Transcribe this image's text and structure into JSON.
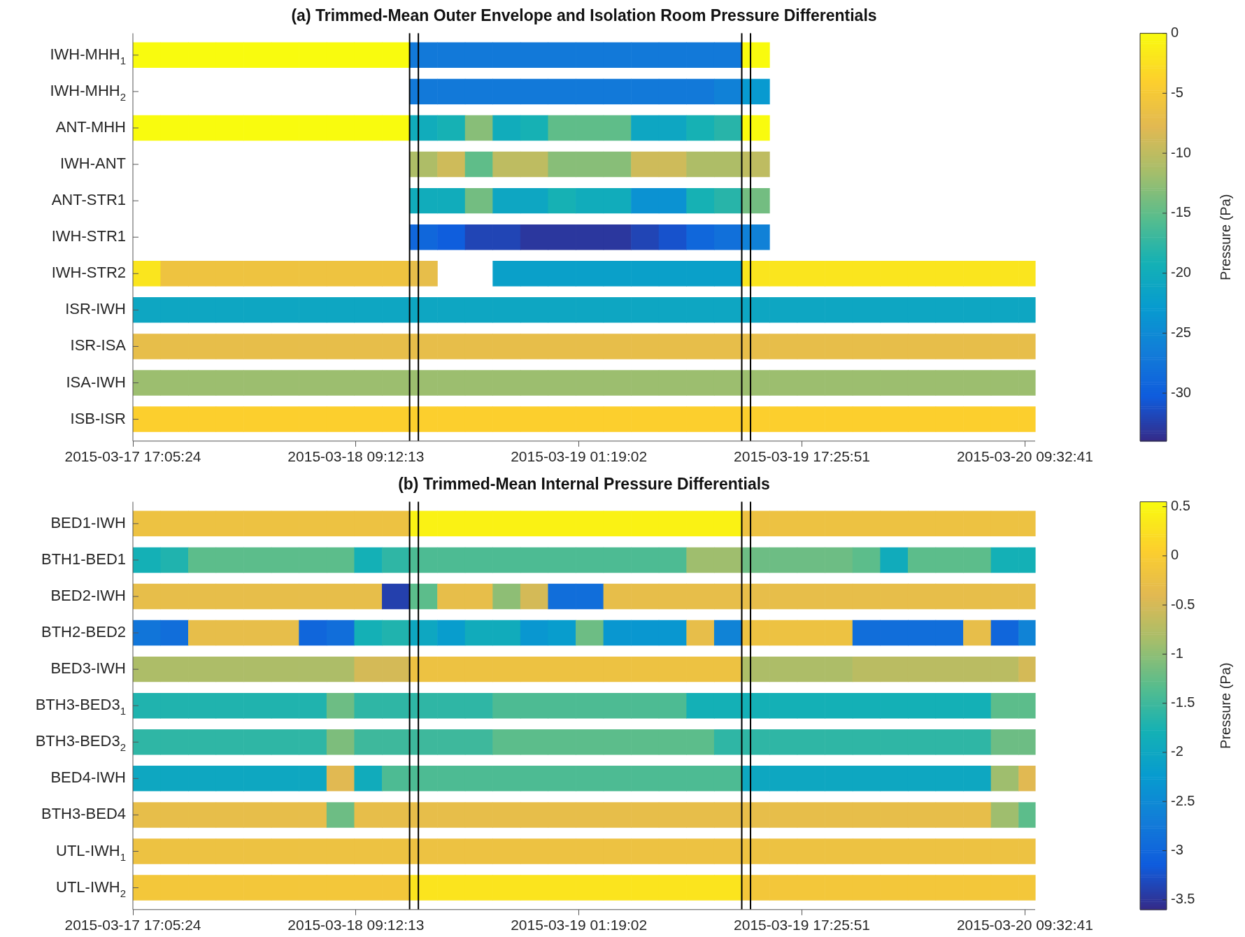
{
  "chart_data": [
    {
      "type": "heatmap",
      "title": "(a) Trimmed-Mean Outer Envelope and Isolation Room Pressure Differentials",
      "clabel": "Pressure (Pa)",
      "x": [
        "2015-03-17T18:05",
        "2015-03-17T20:05",
        "2015-03-17T22:05",
        "2015-03-18T00:05",
        "2015-03-18T02:05",
        "2015-03-18T04:05",
        "2015-03-18T06:05",
        "2015-03-18T08:05",
        "2015-03-18T10:05",
        "2015-03-18T12:05",
        "2015-03-18T14:05",
        "2015-03-18T16:05",
        "2015-03-18T18:05",
        "2015-03-18T20:05",
        "2015-03-18T22:05",
        "2015-03-19T00:05",
        "2015-03-19T02:05",
        "2015-03-19T04:05",
        "2015-03-19T06:05",
        "2015-03-19T08:05",
        "2015-03-19T10:05",
        "2015-03-19T12:05",
        "2015-03-19T14:05",
        "2015-03-19T16:05",
        "2015-03-19T18:05",
        "2015-03-19T20:05",
        "2015-03-19T22:05",
        "2015-03-20T00:05",
        "2015-03-20T02:05",
        "2015-03-20T04:05",
        "2015-03-20T06:05",
        "2015-03-20T08:05",
        "2015-03-20T10:05"
      ],
      "y_categories": [
        "IWH-MHH$_{1}$",
        "IWH-MHH$_{2}$",
        "ANT-MHH",
        "IWH-ANT",
        "ANT-STR1",
        "IWH-STR1",
        "IWH-STR2",
        "ISR-IWH",
        "ISR-ISA",
        "ISA-IWH",
        "ISB-ISR"
      ],
      "cells": [
        [
          0,
          0,
          0,
          0,
          0,
          0,
          0,
          0,
          0,
          0,
          -27,
          -27,
          -27,
          -27,
          -27,
          -27,
          -27,
          -27,
          -27,
          -27,
          -27,
          -27,
          0,
          null,
          null,
          null,
          null,
          null,
          null,
          null,
          null,
          null,
          null
        ],
        [
          null,
          null,
          null,
          null,
          null,
          null,
          null,
          null,
          null,
          null,
          -27,
          -27,
          -27,
          -27,
          -27,
          -27,
          -27,
          -27,
          -27,
          -27,
          -27,
          -26,
          -23,
          null,
          null,
          null,
          null,
          null,
          null,
          null,
          null,
          null,
          null
        ],
        [
          0,
          0,
          0,
          0,
          0,
          0,
          0,
          0,
          0,
          0,
          -20,
          -19,
          -13,
          -20,
          -19,
          -15,
          -15,
          -15,
          -21,
          -21,
          -19,
          -18,
          0,
          null,
          null,
          null,
          null,
          null,
          null,
          null,
          null,
          null,
          null
        ],
        [
          null,
          null,
          null,
          null,
          null,
          null,
          null,
          null,
          null,
          null,
          -11,
          -9,
          -15,
          -10,
          -10,
          -13,
          -13,
          -13,
          -9,
          -9,
          -11,
          -11,
          -10,
          null,
          null,
          null,
          null,
          null,
          null,
          null,
          null,
          null,
          null
        ],
        [
          null,
          null,
          null,
          null,
          null,
          null,
          null,
          null,
          null,
          null,
          -20,
          -20,
          -14,
          -21,
          -21,
          -19,
          -20,
          -20,
          -24,
          -24,
          -19,
          -18,
          -14,
          null,
          null,
          null,
          null,
          null,
          null,
          null,
          null,
          null,
          null
        ],
        [
          null,
          null,
          null,
          null,
          null,
          null,
          null,
          null,
          null,
          null,
          -29,
          -30,
          -32,
          -32,
          -33,
          -33,
          -33,
          -33,
          -32,
          -31,
          -29,
          -28,
          -26,
          null,
          null,
          null,
          null,
          null,
          null,
          null,
          null,
          null,
          null
        ],
        [
          -2,
          -6,
          -6,
          -6,
          -6,
          -6,
          -6,
          -6,
          -6,
          -6,
          -7,
          null,
          null,
          -22,
          -22,
          -22,
          -22,
          -22,
          -22,
          -22,
          -22,
          -22,
          -2,
          -2,
          -2,
          -2,
          -2,
          -2,
          -2,
          -2,
          -2,
          -2,
          -2
        ],
        [
          -21,
          -21,
          -21,
          -21,
          -21,
          -21,
          -21,
          -21,
          -21,
          -21,
          -21,
          -21,
          -21,
          -21,
          -21,
          -21,
          -21,
          -21,
          -21,
          -21,
          -21,
          -21,
          -21,
          -21,
          -21,
          -21,
          -21,
          -21,
          -21,
          -21,
          -21,
          -21,
          -21
        ],
        [
          -7,
          -7,
          -7,
          -7,
          -7,
          -7,
          -7,
          -7,
          -7,
          -7,
          -7,
          -7,
          -7,
          -7,
          -7,
          -7,
          -7,
          -7,
          -7,
          -7,
          -7,
          -7,
          -7,
          -7,
          -7,
          -7,
          -7,
          -7,
          -7,
          -7,
          -7,
          -7,
          -7
        ],
        [
          -12,
          -12,
          -12,
          -12,
          -12,
          -12,
          -12,
          -12,
          -12,
          -12,
          -12,
          -12,
          -12,
          -12,
          -12,
          -12,
          -12,
          -12,
          -12,
          -12,
          -12,
          -12,
          -12,
          -12,
          -12,
          -12,
          -12,
          -12,
          -12,
          -12,
          -12,
          -12,
          -12
        ],
        [
          -4,
          -4,
          -4,
          -4,
          -4,
          -4,
          -4,
          -4,
          -4,
          -4,
          -4,
          -4,
          -4,
          -4,
          -4,
          -4,
          -4,
          -4,
          -4,
          -4,
          -4,
          -4,
          -4,
          -4,
          -4,
          -4,
          -4,
          -4,
          -4,
          -4,
          -4,
          -4,
          -4
        ]
      ],
      "xlim": [
        "2015-03-17T17:05:24",
        "2015-03-20T10:17"
      ],
      "xticks": [
        {
          "value": "2015-03-17T17:05:24",
          "label": "2015-03-17 17:05:24"
        },
        {
          "value": "2015-03-18T09:12:13",
          "label": "2015-03-18 09:12:13"
        },
        {
          "value": "2015-03-19T01:19:02",
          "label": "2015-03-19 01:19:02"
        },
        {
          "value": "2015-03-19T17:25:51",
          "label": "2015-03-19 17:25:51"
        },
        {
          "value": "2015-03-20T09:32:41",
          "label": "2015-03-20 09:32:41"
        }
      ],
      "clim": [
        -34,
        0
      ],
      "cticks": [
        0,
        -5,
        -10,
        -15,
        -20,
        -25,
        -30
      ],
      "ref_lines": [
        {
          "axis": "x",
          "value": "2015-03-18T13:05",
          "color": "#000000"
        },
        {
          "axis": "x",
          "value": "2015-03-18T13:43",
          "color": "#000000"
        },
        {
          "axis": "x",
          "value": "2015-03-19T13:05",
          "color": "#000000"
        },
        {
          "axis": "x",
          "value": "2015-03-19T13:43",
          "color": "#000000"
        }
      ]
    },
    {
      "type": "heatmap",
      "title": "(b) Trimmed-Mean Internal Pressure Differentials",
      "clabel": "Pressure (Pa)",
      "x": [
        "2015-03-17T18:05",
        "2015-03-17T20:05",
        "2015-03-17T22:05",
        "2015-03-18T00:05",
        "2015-03-18T02:05",
        "2015-03-18T04:05",
        "2015-03-18T06:05",
        "2015-03-18T08:05",
        "2015-03-18T10:05",
        "2015-03-18T12:05",
        "2015-03-18T14:05",
        "2015-03-18T16:05",
        "2015-03-18T18:05",
        "2015-03-18T20:05",
        "2015-03-18T22:05",
        "2015-03-19T00:05",
        "2015-03-19T02:05",
        "2015-03-19T04:05",
        "2015-03-19T06:05",
        "2015-03-19T08:05",
        "2015-03-19T10:05",
        "2015-03-19T12:05",
        "2015-03-19T14:05",
        "2015-03-19T16:05",
        "2015-03-19T18:05",
        "2015-03-19T20:05",
        "2015-03-19T22:05",
        "2015-03-20T00:05",
        "2015-03-20T02:05",
        "2015-03-20T04:05",
        "2015-03-20T06:05",
        "2015-03-20T08:05",
        "2015-03-20T10:05"
      ],
      "y_categories": [
        "BED1-IWH",
        "BTH1-BED1",
        "BED2-IWH",
        "BTH2-BED2",
        "BED3-IWH",
        "BTH3-BED3$_{1}$",
        "BTH3-BED3$_{2}$",
        "BED4-IWH",
        "BTH3-BED4",
        "UTL-IWH$_{1}$",
        "UTL-IWH$_{2}$"
      ],
      "cells": [
        [
          -0.2,
          -0.2,
          -0.2,
          -0.2,
          -0.2,
          -0.2,
          -0.2,
          -0.2,
          -0.2,
          -0.2,
          0.45,
          0.45,
          0.45,
          0.45,
          0.45,
          0.45,
          0.45,
          0.45,
          0.45,
          0.45,
          0.45,
          0.45,
          -0.2,
          -0.2,
          -0.2,
          -0.2,
          -0.2,
          -0.2,
          -0.2,
          -0.2,
          -0.2,
          -0.2,
          -0.2
        ],
        [
          -1.8,
          -1.7,
          -1.3,
          -1.3,
          -1.3,
          -1.3,
          -1.3,
          -1.3,
          -1.8,
          -1.6,
          -1.4,
          -1.4,
          -1.4,
          -1.4,
          -1.4,
          -1.4,
          -1.4,
          -1.4,
          -1.4,
          -1.4,
          -0.9,
          -0.9,
          -1.2,
          -1.2,
          -1.2,
          -1.2,
          -1.3,
          -1.9,
          -1.3,
          -1.3,
          -1.3,
          -1.8,
          -1.8
        ],
        [
          -0.3,
          -0.3,
          -0.3,
          -0.3,
          -0.3,
          -0.3,
          -0.3,
          -0.3,
          -0.3,
          -3.4,
          -1.3,
          -0.3,
          -0.3,
          -1.0,
          -0.5,
          -2.9,
          -2.9,
          -0.3,
          -0.3,
          -0.3,
          -0.3,
          -0.3,
          -0.3,
          -0.3,
          -0.3,
          -0.3,
          -0.3,
          -0.3,
          -0.3,
          -0.3,
          -0.3,
          -0.3,
          -0.3
        ],
        [
          -2.8,
          -2.9,
          -0.3,
          -0.3,
          -0.3,
          -0.3,
          -3.0,
          -2.9,
          -1.8,
          -1.7,
          -2.0,
          -2.2,
          -1.9,
          -1.9,
          -2.3,
          -2.2,
          -1.2,
          -2.3,
          -2.3,
          -2.3,
          -0.3,
          -2.6,
          -0.2,
          -0.2,
          -0.2,
          -0.2,
          -2.9,
          -2.9,
          -2.9,
          -2.9,
          -0.3,
          -3.0,
          -2.6
        ],
        [
          -0.8,
          -0.8,
          -0.8,
          -0.8,
          -0.8,
          -0.8,
          -0.8,
          -0.8,
          -0.5,
          -0.5,
          -0.2,
          -0.2,
          -0.2,
          -0.2,
          -0.2,
          -0.2,
          -0.2,
          -0.2,
          -0.2,
          -0.2,
          -0.2,
          -0.2,
          -0.8,
          -0.8,
          -0.8,
          -0.8,
          -0.7,
          -0.7,
          -0.7,
          -0.7,
          -0.7,
          -0.7,
          -0.5
        ],
        [
          -1.7,
          -1.7,
          -1.7,
          -1.7,
          -1.7,
          -1.7,
          -1.7,
          -1.2,
          -1.6,
          -1.6,
          -1.6,
          -1.6,
          -1.6,
          -1.4,
          -1.4,
          -1.4,
          -1.4,
          -1.4,
          -1.4,
          -1.4,
          -1.8,
          -1.8,
          -1.8,
          -1.8,
          -1.8,
          -1.8,
          -1.8,
          -1.8,
          -1.8,
          -1.8,
          -1.8,
          -1.3,
          -1.3
        ],
        [
          -1.6,
          -1.6,
          -1.6,
          -1.6,
          -1.6,
          -1.6,
          -1.6,
          -1.1,
          -1.5,
          -1.5,
          -1.5,
          -1.5,
          -1.5,
          -1.3,
          -1.3,
          -1.3,
          -1.3,
          -1.3,
          -1.3,
          -1.3,
          -1.3,
          -1.6,
          -1.6,
          -1.6,
          -1.6,
          -1.6,
          -1.6,
          -1.6,
          -1.6,
          -1.6,
          -1.6,
          -1.2,
          -1.2
        ],
        [
          -2.0,
          -2.0,
          -2.0,
          -2.0,
          -2.0,
          -2.0,
          -2.0,
          -0.4,
          -1.9,
          -1.4,
          -1.4,
          -1.4,
          -1.4,
          -1.4,
          -1.4,
          -1.4,
          -1.4,
          -1.4,
          -1.4,
          -1.4,
          -1.4,
          -1.4,
          -2.0,
          -2.0,
          -2.0,
          -2.0,
          -2.0,
          -2.0,
          -2.0,
          -2.0,
          -2.0,
          -0.9,
          -0.4
        ],
        [
          -0.3,
          -0.3,
          -0.3,
          -0.3,
          -0.3,
          -0.3,
          -0.3,
          -1.2,
          -0.3,
          -0.3,
          -0.3,
          -0.3,
          -0.3,
          -0.3,
          -0.3,
          -0.3,
          -0.3,
          -0.3,
          -0.3,
          -0.3,
          -0.3,
          -0.3,
          -0.3,
          -0.3,
          -0.3,
          -0.3,
          -0.3,
          -0.3,
          -0.3,
          -0.3,
          -0.3,
          -0.9,
          -1.3
        ],
        [
          -0.2,
          -0.2,
          -0.2,
          -0.2,
          -0.2,
          -0.2,
          -0.2,
          -0.2,
          -0.2,
          -0.2,
          -0.2,
          -0.2,
          -0.2,
          -0.2,
          -0.2,
          -0.2,
          -0.2,
          -0.2,
          -0.2,
          -0.2,
          -0.2,
          -0.2,
          -0.2,
          -0.2,
          -0.2,
          -0.2,
          -0.2,
          -0.2,
          -0.2,
          -0.2,
          -0.2,
          -0.2,
          -0.2
        ],
        [
          -0.1,
          -0.1,
          -0.1,
          -0.1,
          -0.1,
          -0.1,
          -0.1,
          -0.1,
          -0.1,
          -0.1,
          0.3,
          0.3,
          0.3,
          0.3,
          0.3,
          0.3,
          0.3,
          0.3,
          0.3,
          0.3,
          0.3,
          0.3,
          -0.1,
          -0.1,
          -0.1,
          -0.1,
          -0.1,
          -0.1,
          -0.1,
          -0.1,
          -0.1,
          -0.1,
          -0.1
        ]
      ],
      "xlim": [
        "2015-03-17T17:05:24",
        "2015-03-20T10:17"
      ],
      "xticks": [
        {
          "value": "2015-03-17T17:05:24",
          "label": "2015-03-17 17:05:24"
        },
        {
          "value": "2015-03-18T09:12:13",
          "label": "2015-03-18 09:12:13"
        },
        {
          "value": "2015-03-19T01:19:02",
          "label": "2015-03-19 01:19:02"
        },
        {
          "value": "2015-03-19T17:25:51",
          "label": "2015-03-19 17:25:51"
        },
        {
          "value": "2015-03-20T09:32:41",
          "label": "2015-03-20 09:32:41"
        }
      ],
      "clim": [
        -3.6,
        0.55
      ],
      "cticks": [
        0.5,
        0,
        -0.5,
        -1,
        -1.5,
        -2,
        -2.5,
        -3,
        -3.5
      ],
      "ref_lines": [
        {
          "axis": "x",
          "value": "2015-03-18T13:05",
          "color": "#000000"
        },
        {
          "axis": "x",
          "value": "2015-03-18T13:43",
          "color": "#000000"
        },
        {
          "axis": "x",
          "value": "2015-03-19T13:05",
          "color": "#000000"
        },
        {
          "axis": "x",
          "value": "2015-03-19T13:43",
          "color": "#000000"
        }
      ]
    }
  ]
}
